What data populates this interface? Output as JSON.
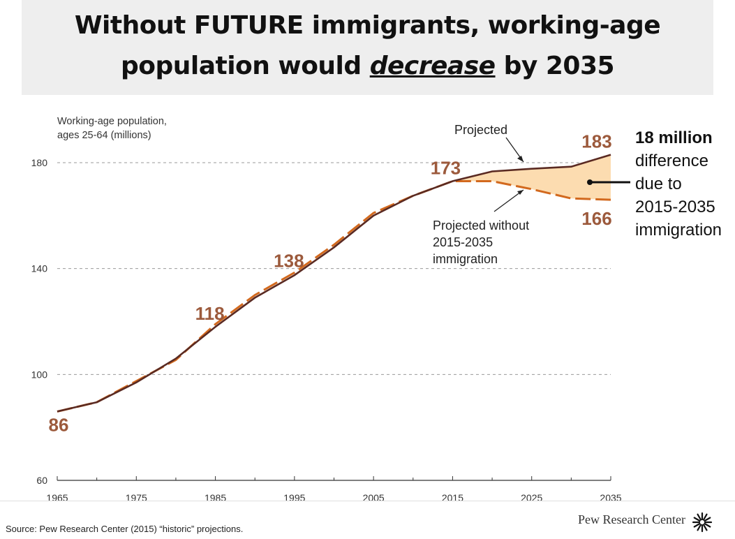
{
  "title": {
    "line1": "Without FUTURE immigrants, working-age",
    "line2_pre": "population would ",
    "line2_em": "decrease",
    "line2_post": " by 2035"
  },
  "chart_data": {
    "type": "line",
    "ylabel_line1": "Working-age population,",
    "ylabel_line2": "ages 25-64 (millions)",
    "ylim": [
      60,
      190
    ],
    "yticks": [
      60,
      100,
      140,
      180
    ],
    "xlim": [
      1965,
      2035
    ],
    "xticks": [
      1965,
      1975,
      1985,
      1995,
      2005,
      2015,
      2025,
      2035
    ],
    "series": [
      {
        "name": "Projected",
        "color": "#5a2a22",
        "style": "solid",
        "x": [
          1965,
          1970,
          1975,
          1980,
          1985,
          1990,
          1995,
          2000,
          2005,
          2010,
          2015,
          2020,
          2025,
          2030,
          2035
        ],
        "values": [
          86,
          89.5,
          97,
          106,
          118,
          129,
          137.5,
          148,
          160,
          167.5,
          173,
          176.7,
          177.7,
          178.5,
          183
        ]
      },
      {
        "name": "Projected without 2015-2035 immigration",
        "color": "#d2691e",
        "style": "dashed",
        "x": [
          1965,
          1970,
          1975,
          1980,
          1985,
          1990,
          1995,
          2000,
          2005,
          2010,
          2015,
          2020,
          2025,
          2030,
          2035
        ],
        "values": [
          86,
          89.5,
          97.5,
          105.5,
          119,
          130,
          138.5,
          149,
          161,
          167.5,
          173,
          173,
          170,
          166.5,
          166
        ]
      }
    ],
    "point_labels": [
      {
        "x": 1965,
        "y": 86,
        "text": "86"
      },
      {
        "x": 1985,
        "y": 118,
        "text": "118"
      },
      {
        "x": 1995,
        "y": 138,
        "text": "138"
      },
      {
        "x": 2015,
        "y": 173,
        "text": "173"
      },
      {
        "x": 2035,
        "y": 183,
        "text": "183"
      },
      {
        "x": 2035,
        "y": 166,
        "text": "166"
      }
    ],
    "label_color": "#9c5a3c",
    "fill_color": "#fcdcb0",
    "annotations": {
      "projected": "Projected",
      "without_line1": "Projected without",
      "without_line2": "2015-2035",
      "without_line3": "immigration",
      "diff_bold": "18 million",
      "diff_line2": "difference",
      "diff_line3": "due to",
      "diff_line4": "2015-2035",
      "diff_line5": "immigration"
    }
  },
  "footer": {
    "source": "Source: Pew Research Center (2015) “historic” projections.",
    "brand": "Pew Research Center"
  }
}
